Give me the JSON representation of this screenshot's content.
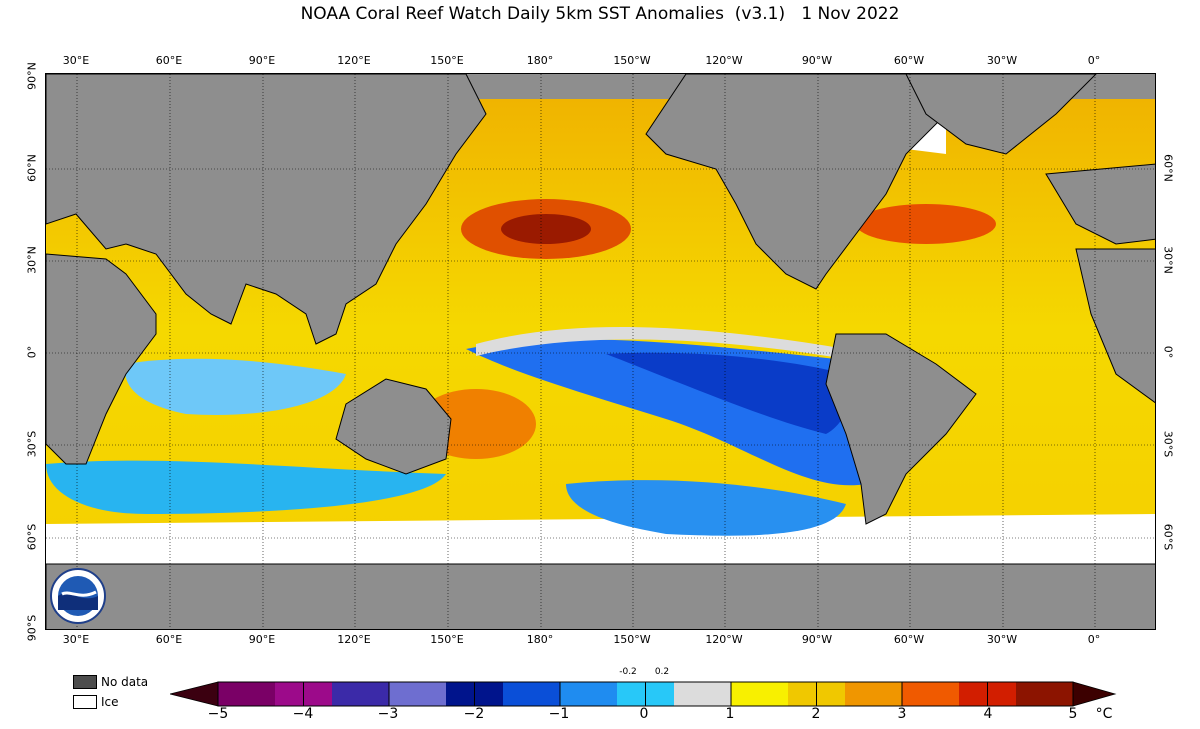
{
  "title": "NOAA Coral Reef Watch Daily 5km SST Anomalies  (v3.1)   1 Nov 2022",
  "map": {
    "lon_labels": [
      "30°E",
      "60°E",
      "90°E",
      "120°E",
      "150°E",
      "180°",
      "150°W",
      "120°W",
      "90°W",
      "60°W",
      "30°W",
      "0°"
    ],
    "lat_labels_left": [
      "90°N",
      "60°N",
      "30°N",
      "0°",
      "30°S",
      "60°S",
      "90°S"
    ],
    "lat_labels_right": [
      "60°N",
      "30°N",
      "0°",
      "30°S",
      "60°S"
    ],
    "land_color": "#8e8e8e",
    "logo_icon": "noaa-logo"
  },
  "legend": {
    "no_data_label": "No data",
    "no_data_color": "#4d4d4d",
    "ice_label": "Ice",
    "ice_color": "#ffffff"
  },
  "colorbar": {
    "tick_labels": [
      "−5",
      "−4",
      "−3",
      "−2",
      "−1",
      "0",
      "1",
      "2",
      "3",
      "4",
      "5"
    ],
    "small_labels": [
      "-0.2",
      "0.2"
    ],
    "unit": "°C",
    "stops": [
      "#3b0010",
      "#7a0066",
      "#9c0a8a",
      "#3b2aa8",
      "#6e6ed0",
      "#00148c",
      "#0a4fd8",
      "#1f8cf0",
      "#28c8f8",
      "#dcdcdc",
      "#f8f000",
      "#f0c800",
      "#f09600",
      "#f05a00",
      "#d21e00",
      "#8c1400",
      "#3c0000"
    ]
  }
}
